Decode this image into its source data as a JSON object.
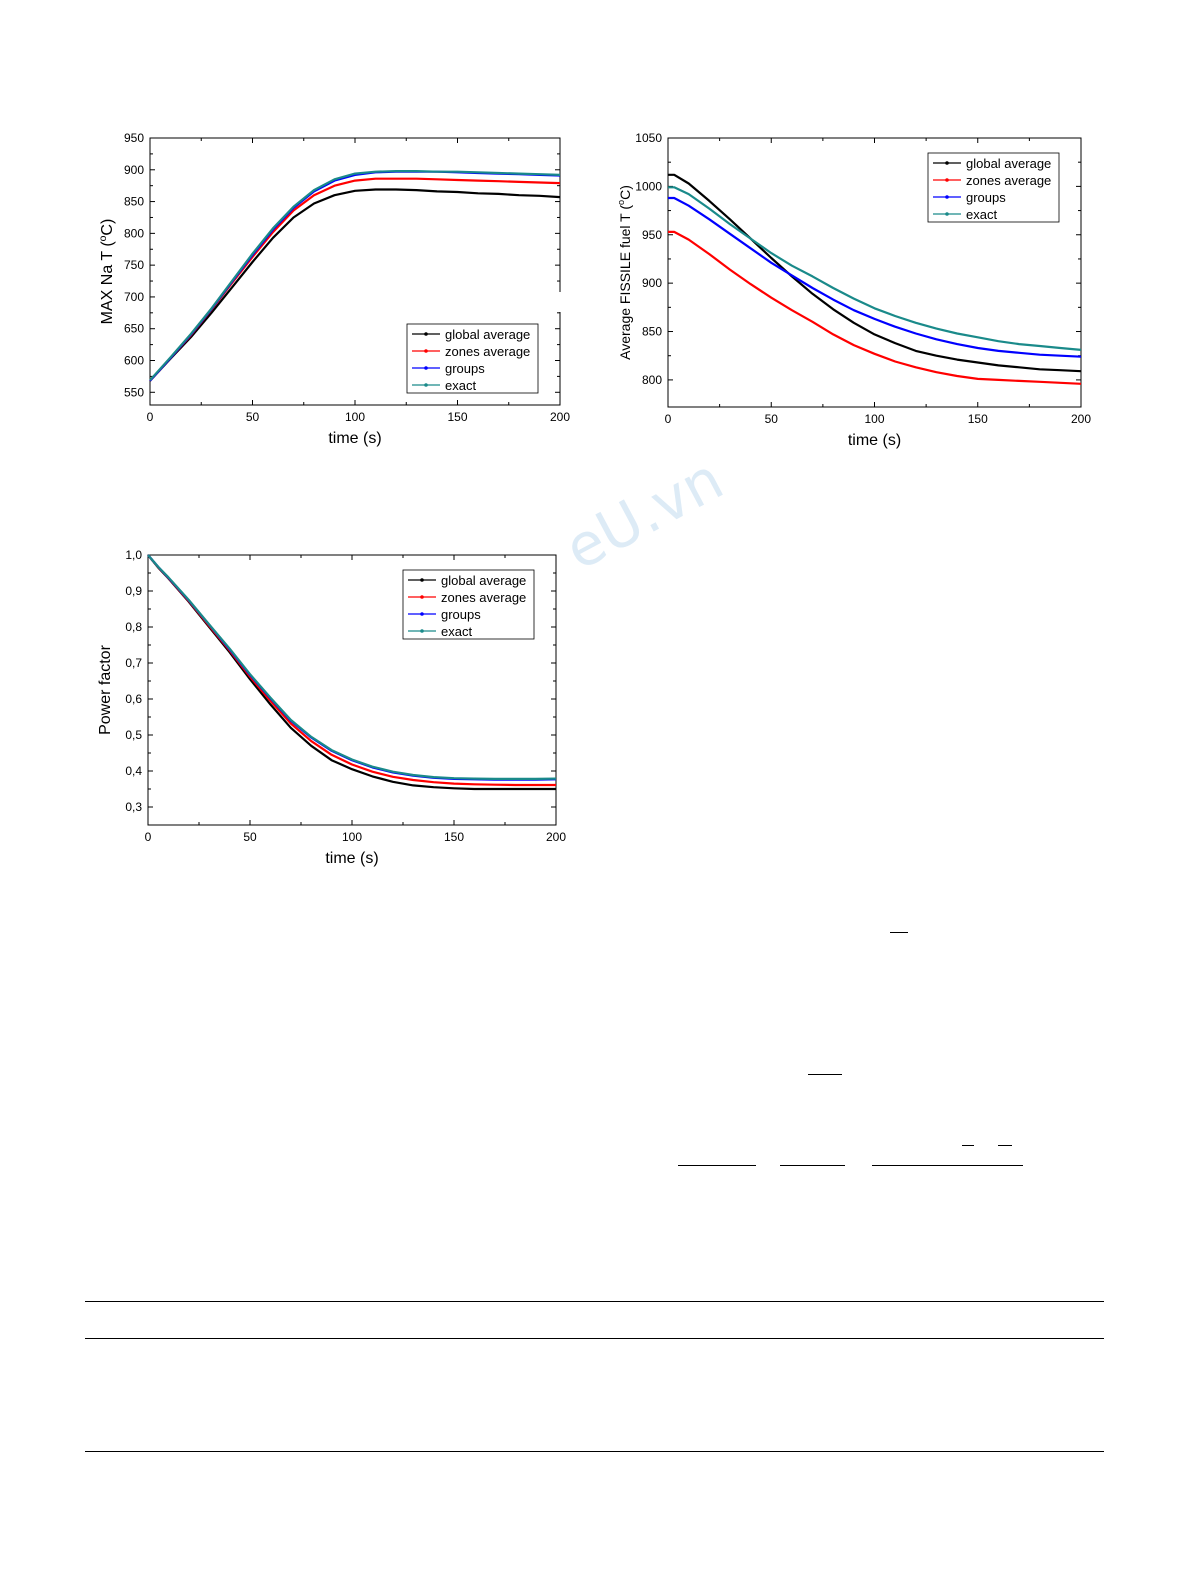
{
  "watermark": "eU.vn",
  "chart_data": [
    {
      "id": "na",
      "type": "line",
      "xlabel": "time (s)",
      "ylabel": "MAX Na T (°C)",
      "ylabel_main": "MAX Na T (",
      "ylabel_sup": "o",
      "ylabel_tail": "C)",
      "xlim": [
        0,
        200
      ],
      "ylim": [
        530,
        950
      ],
      "xticks": [
        0,
        50,
        100,
        150,
        200
      ],
      "xtick_labels": [
        "0",
        "50",
        "100",
        "150",
        "200"
      ],
      "yticks": [
        550,
        600,
        650,
        700,
        750,
        800,
        850,
        900,
        950
      ],
      "ytick_labels": [
        "550",
        "600",
        "650",
        "700",
        "750",
        "800",
        "850",
        "900",
        "950"
      ],
      "legend_position": "bottom-right",
      "x": [
        0,
        10,
        20,
        30,
        40,
        50,
        60,
        70,
        80,
        90,
        100,
        110,
        120,
        130,
        140,
        150,
        160,
        170,
        180,
        190,
        200
      ],
      "series": [
        {
          "name": "global average",
          "color": "#000000",
          "values": [
            568,
            603,
            637,
            675,
            715,
            755,
            793,
            825,
            847,
            860,
            867,
            869,
            869,
            868,
            866,
            865,
            863,
            862,
            860,
            859,
            857
          ]
        },
        {
          "name": "zones average",
          "color": "#ff0000",
          "values": [
            568,
            604,
            640,
            680,
            722,
            763,
            802,
            836,
            860,
            875,
            883,
            886,
            886,
            886,
            885,
            884,
            883,
            882,
            881,
            880,
            879
          ]
        },
        {
          "name": "groups",
          "color": "#0000ff",
          "values": [
            568,
            604,
            641,
            681,
            724,
            766,
            806,
            840,
            866,
            883,
            892,
            896,
            897,
            897,
            897,
            896,
            895,
            894,
            893,
            892,
            891
          ]
        },
        {
          "name": "exact",
          "color": "#1a8a8a",
          "values": [
            569,
            605,
            642,
            682,
            725,
            768,
            808,
            842,
            868,
            885,
            894,
            897,
            898,
            898,
            897,
            897,
            896,
            895,
            894,
            893,
            892
          ]
        }
      ]
    },
    {
      "id": "fuel",
      "type": "line",
      "xlabel": "time (s)",
      "ylabel": "Average FISSILE fuel T (°C)",
      "ylabel_main": "Average FISSILE fuel T (",
      "ylabel_sup": "o",
      "ylabel_tail": "C)",
      "xlim": [
        0,
        200
      ],
      "ylim": [
        772,
        1050
      ],
      "xticks": [
        0,
        50,
        100,
        150,
        200
      ],
      "xtick_labels": [
        "0",
        "50",
        "100",
        "150",
        "200"
      ],
      "yticks": [
        800,
        850,
        900,
        950,
        1000,
        1050
      ],
      "ytick_labels": [
        "800",
        "850",
        "900",
        "950",
        "1000",
        "1050"
      ],
      "legend_position": "top-right",
      "x": [
        0,
        3,
        10,
        20,
        30,
        40,
        50,
        60,
        70,
        80,
        90,
        100,
        110,
        120,
        130,
        140,
        150,
        160,
        170,
        180,
        190,
        200
      ],
      "series": [
        {
          "name": "global average",
          "color": "#000000",
          "values": [
            1012,
            1012,
            1003,
            985,
            966,
            946,
            926,
            907,
            889,
            873,
            859,
            847,
            838,
            830,
            825,
            821,
            818,
            815,
            813,
            811,
            810,
            809
          ]
        },
        {
          "name": "zones average",
          "color": "#ff0000",
          "values": [
            953,
            953,
            945,
            930,
            914,
            899,
            885,
            872,
            860,
            847,
            836,
            827,
            819,
            813,
            808,
            804,
            801,
            800,
            799,
            798,
            797,
            796
          ]
        },
        {
          "name": "groups",
          "color": "#0000ff",
          "values": [
            988,
            988,
            980,
            966,
            951,
            936,
            921,
            908,
            895,
            883,
            872,
            863,
            855,
            848,
            842,
            837,
            833,
            830,
            828,
            826,
            825,
            824
          ]
        },
        {
          "name": "exact",
          "color": "#1a8a8a",
          "values": [
            999,
            999,
            992,
            977,
            961,
            946,
            931,
            918,
            907,
            895,
            884,
            874,
            866,
            859,
            853,
            848,
            844,
            840,
            837,
            835,
            833,
            831
          ]
        }
      ]
    },
    {
      "id": "power",
      "type": "line",
      "xlabel": "time (s)",
      "ylabel": "Power factor",
      "ylabel_main": "Power factor",
      "ylabel_sup": "",
      "ylabel_tail": "",
      "xlim": [
        0,
        200
      ],
      "ylim": [
        0.25,
        1.0
      ],
      "xticks": [
        0,
        50,
        100,
        150,
        200
      ],
      "xtick_labels": [
        "0",
        "50",
        "100",
        "150",
        "200"
      ],
      "yticks": [
        0.3,
        0.4,
        0.5,
        0.6,
        0.7,
        0.8,
        0.9,
        1.0
      ],
      "ytick_labels": [
        "0,3",
        "0,4",
        "0,5",
        "0,6",
        "0,7",
        "0,8",
        "0,9",
        "1,0"
      ],
      "legend_position": "top-right",
      "x": [
        0,
        5,
        10,
        20,
        30,
        40,
        50,
        60,
        70,
        80,
        90,
        100,
        110,
        120,
        130,
        140,
        150,
        160,
        170,
        180,
        190,
        200
      ],
      "series": [
        {
          "name": "global average",
          "color": "#000000",
          "values": [
            1.0,
            0.965,
            0.935,
            0.87,
            0.8,
            0.73,
            0.655,
            0.585,
            0.52,
            0.47,
            0.43,
            0.405,
            0.385,
            0.37,
            0.36,
            0.355,
            0.352,
            0.35,
            0.35,
            0.35,
            0.35,
            0.35
          ]
        },
        {
          "name": "zones average",
          "color": "#ff0000",
          "values": [
            1.0,
            0.966,
            0.936,
            0.872,
            0.803,
            0.735,
            0.662,
            0.595,
            0.532,
            0.483,
            0.445,
            0.418,
            0.398,
            0.384,
            0.375,
            0.369,
            0.365,
            0.363,
            0.362,
            0.361,
            0.361,
            0.361
          ]
        },
        {
          "name": "groups",
          "color": "#0000ff",
          "values": [
            1.0,
            0.967,
            0.937,
            0.874,
            0.806,
            0.738,
            0.667,
            0.602,
            0.54,
            0.493,
            0.456,
            0.43,
            0.41,
            0.396,
            0.387,
            0.381,
            0.378,
            0.377,
            0.376,
            0.376,
            0.376,
            0.377
          ]
        },
        {
          "name": "exact",
          "color": "#1a8a8a",
          "values": [
            1.0,
            0.967,
            0.938,
            0.875,
            0.807,
            0.74,
            0.669,
            0.604,
            0.542,
            0.495,
            0.458,
            0.432,
            0.412,
            0.398,
            0.389,
            0.383,
            0.38,
            0.379,
            0.378,
            0.378,
            0.378,
            0.379
          ]
        }
      ]
    }
  ]
}
